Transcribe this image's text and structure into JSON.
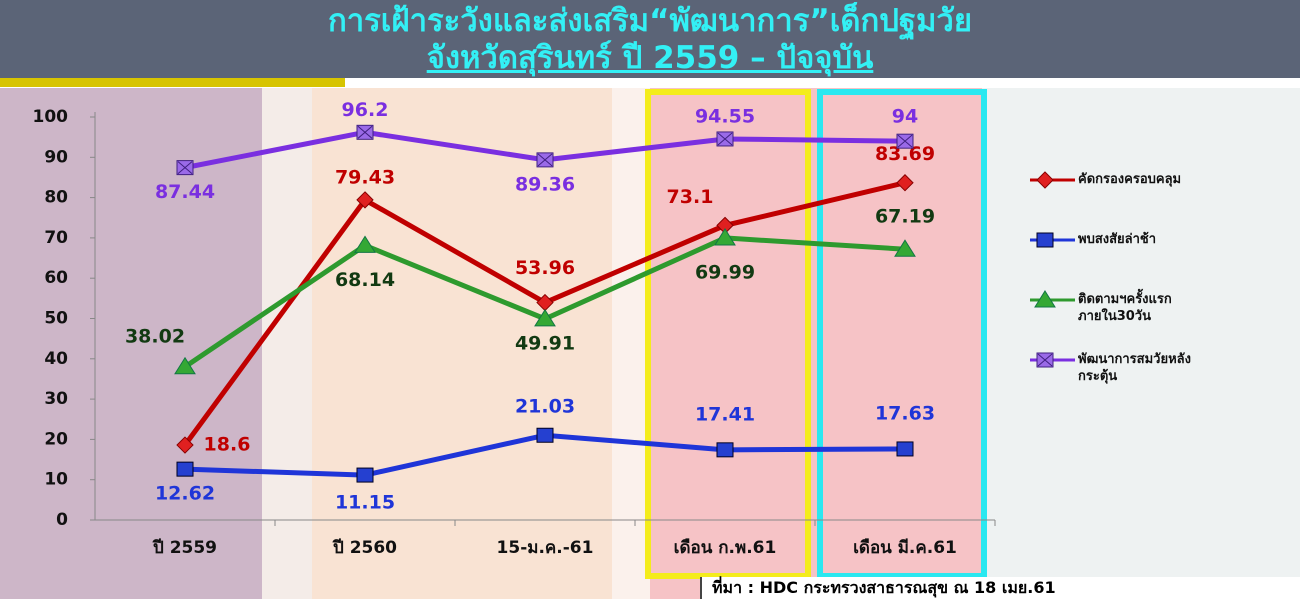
{
  "chart_data": {
    "type": "line",
    "title": "การเฝ้าระวังและส่งเสริม“พัฒนาการ”เด็กปฐมวัย",
    "subtitle": "จังหวัดสุรินทร์ ปี 2559 –  ปัจจุบัน",
    "source": "ที่มา : HDC  กระทรวงสาธารณสุข ณ 18 เมย.61",
    "categories": [
      "ปี 2559",
      "ปี 2560",
      "15-ม.ค.-61",
      "เดือน ก.พ.61",
      "เดือน มี.ค.61"
    ],
    "ylim": [
      0,
      100
    ],
    "yticks": [
      0,
      10,
      20,
      30,
      40,
      50,
      60,
      70,
      80,
      90,
      100
    ],
    "series": [
      {
        "name": "คัดกรองครอบคลุม",
        "color": "#c00000",
        "values": [
          18.6,
          79.43,
          53.96,
          73.1,
          83.69
        ]
      },
      {
        "name": "พบสงสัยล่าช้า",
        "color": "#1f35d8",
        "values": [
          12.62,
          11.15,
          21.03,
          17.41,
          17.63
        ]
      },
      {
        "name": "ติดตามฯครั้งแรก ภายใน30วัน",
        "color": "#2e9a2e",
        "values": [
          38.02,
          68.14,
          49.91,
          69.99,
          67.19
        ]
      },
      {
        "name": "พัฒนาการสมวัยหลัง กระตุ้น",
        "color": "#7a2fe0",
        "values": [
          87.44,
          96.2,
          89.36,
          94.55,
          94
        ]
      }
    ]
  }
}
